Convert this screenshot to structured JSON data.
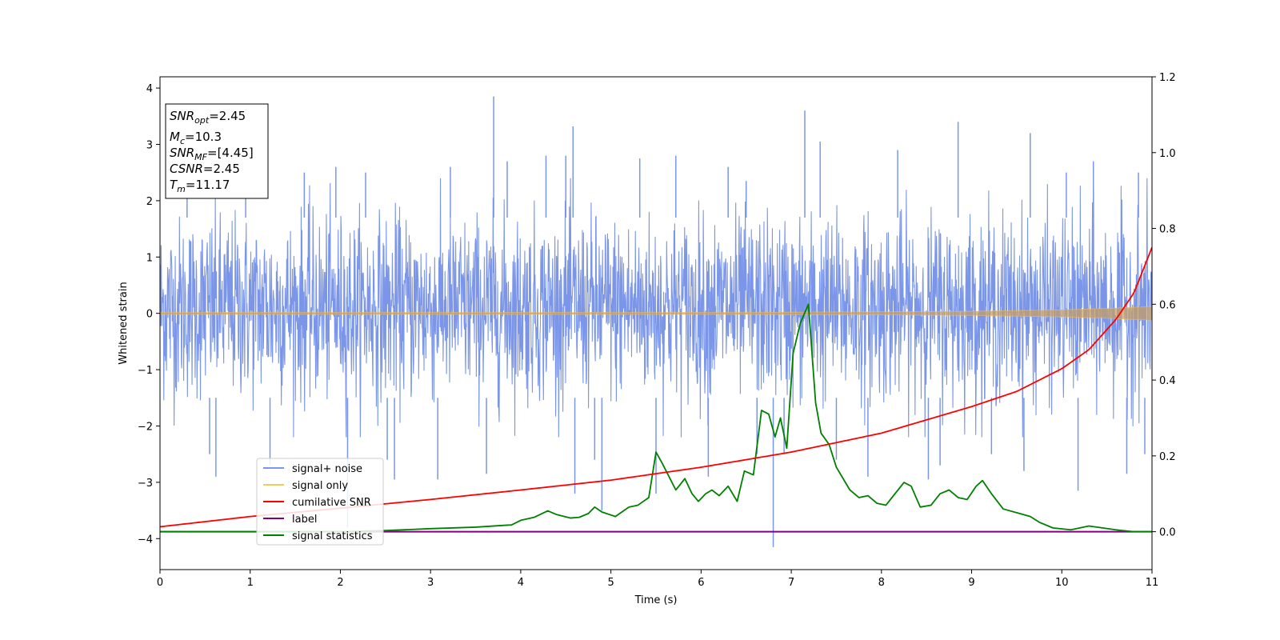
{
  "chart_data": {
    "type": "line",
    "xlabel": "Time (s)",
    "ylabel": "Whitened strain",
    "xlim": [
      0,
      11
    ],
    "ylim": [
      -4.55,
      4.2
    ],
    "y2lim": [
      -0.1,
      1.2
    ],
    "x_ticks": [
      0,
      1,
      2,
      3,
      4,
      5,
      6,
      7,
      8,
      9,
      10,
      11
    ],
    "y_ticks": [
      -4,
      -3,
      -2,
      -1,
      0,
      1,
      2,
      3,
      4
    ],
    "y2_ticks": [
      0.0,
      0.2,
      0.4,
      0.6,
      0.8,
      1.0,
      1.2
    ],
    "y_tick_labels": [
      "−4",
      "−3",
      "−2",
      "−1",
      "0",
      "1",
      "2",
      "3",
      "4"
    ],
    "y2_tick_labels": [
      "0.0",
      "0.2",
      "0.4",
      "0.6",
      "0.8",
      "1.0",
      "1.2"
    ],
    "grid": false,
    "legend_position": "lower-left",
    "annotation": {
      "lines": [
        {
          "sym": "SNR",
          "sub": "opt",
          "val": "=2.45"
        },
        {
          "sym": "M",
          "sub": "c",
          "val": "=10.3"
        },
        {
          "sym": "SNR",
          "sub": "MF",
          "val": "=[4.45]"
        },
        {
          "sym": "CSNR",
          "sub": "",
          "val": "=2.45"
        },
        {
          "sym": "T",
          "sub": "m",
          "val": "=11.17"
        }
      ]
    },
    "series": [
      {
        "name": "signal+ noise",
        "axis": "left",
        "color": "#7b96e8",
        "noise_band": {
          "typical_low": -1.8,
          "typical_high": 2.0
        },
        "spikes": [
          [
            0.3,
            2.5
          ],
          [
            0.55,
            -2.5
          ],
          [
            0.62,
            -2.9
          ],
          [
            0.95,
            2.6
          ],
          [
            1.22,
            -2.7
          ],
          [
            1.6,
            2.5
          ],
          [
            1.95,
            2.6
          ],
          [
            2.08,
            -3.8
          ],
          [
            2.28,
            2.5
          ],
          [
            2.52,
            -2.6
          ],
          [
            2.6,
            -2.95
          ],
          [
            3.08,
            -2.95
          ],
          [
            3.22,
            2.6
          ],
          [
            3.62,
            -2.85
          ],
          [
            3.7,
            3.85
          ],
          [
            3.85,
            2.7
          ],
          [
            4.28,
            2.8
          ],
          [
            4.5,
            2.8
          ],
          [
            4.58,
            3.32
          ],
          [
            4.6,
            -3.2
          ],
          [
            4.82,
            -2.6
          ],
          [
            4.9,
            -3.5
          ],
          [
            5.32,
            2.75
          ],
          [
            5.5,
            -3.2
          ],
          [
            5.72,
            2.8
          ],
          [
            6.08,
            -2.9
          ],
          [
            6.3,
            2.6
          ],
          [
            6.5,
            2.35
          ],
          [
            6.62,
            -2.5
          ],
          [
            6.8,
            -4.15
          ],
          [
            6.92,
            -2.5
          ],
          [
            7.15,
            3.6
          ],
          [
            7.32,
            3.05
          ],
          [
            7.5,
            -2.6
          ],
          [
            7.85,
            -2.9
          ],
          [
            8.18,
            2.9
          ],
          [
            8.52,
            -2.95
          ],
          [
            8.65,
            -2.7
          ],
          [
            8.85,
            3.4
          ],
          [
            9.22,
            -2.5
          ],
          [
            9.58,
            -2.8
          ],
          [
            9.65,
            3.2
          ],
          [
            10.05,
            2.5
          ],
          [
            10.18,
            -3.15
          ],
          [
            10.35,
            2.7
          ],
          [
            10.72,
            -2.85
          ],
          [
            10.85,
            2.5
          ],
          [
            10.92,
            -2.5
          ]
        ]
      },
      {
        "name": "signal only",
        "axis": "left",
        "color": "#f5c862",
        "envelope": {
          "x": [
            0,
            6.5,
            8.0,
            9.0,
            10.0,
            10.5,
            11.0
          ],
          "amp": [
            0.015,
            0.015,
            0.025,
            0.035,
            0.06,
            0.085,
            0.12
          ]
        }
      },
      {
        "name": "cumilative SNR",
        "axis": "right",
        "color": "#ff0000",
        "x": [
          0,
          1,
          2,
          3,
          4,
          5,
          6,
          7,
          8,
          9,
          9.5,
          10,
          10.3,
          10.6,
          10.8,
          11
        ],
        "values": [
          0.013,
          0.04,
          0.062,
          0.085,
          0.11,
          0.136,
          0.17,
          0.21,
          0.26,
          0.33,
          0.37,
          0.43,
          0.48,
          0.56,
          0.63,
          0.75
        ]
      },
      {
        "name": "label",
        "axis": "right",
        "color": "#800080",
        "x": [
          0,
          11
        ],
        "values": [
          0.0,
          0.0
        ]
      },
      {
        "name": "signal statistics",
        "axis": "right",
        "color": "#008000",
        "x": [
          0,
          1,
          2,
          2.5,
          3,
          3.5,
          3.9,
          4.0,
          4.15,
          4.3,
          4.4,
          4.55,
          4.65,
          4.75,
          4.82,
          4.9,
          5.05,
          5.2,
          5.3,
          5.42,
          5.5,
          5.57,
          5.72,
          5.82,
          5.9,
          5.97,
          6.05,
          6.12,
          6.2,
          6.3,
          6.4,
          6.48,
          6.58,
          6.67,
          6.75,
          6.82,
          6.88,
          6.95,
          7.02,
          7.1,
          7.19,
          7.27,
          7.33,
          7.42,
          7.5,
          7.65,
          7.75,
          7.85,
          7.95,
          8.05,
          8.15,
          8.25,
          8.33,
          8.43,
          8.55,
          8.65,
          8.75,
          8.85,
          8.95,
          9.05,
          9.12,
          9.22,
          9.35,
          9.5,
          9.65,
          9.75,
          9.9,
          10.1,
          10.3,
          10.6,
          10.8,
          11
        ],
        "values": [
          0.0,
          0.0,
          0.0,
          0.003,
          0.008,
          0.012,
          0.018,
          0.03,
          0.038,
          0.055,
          0.045,
          0.036,
          0.038,
          0.048,
          0.065,
          0.052,
          0.04,
          0.065,
          0.07,
          0.09,
          0.21,
          0.18,
          0.11,
          0.14,
          0.1,
          0.08,
          0.1,
          0.11,
          0.095,
          0.12,
          0.08,
          0.16,
          0.15,
          0.32,
          0.31,
          0.25,
          0.3,
          0.22,
          0.47,
          0.55,
          0.6,
          0.34,
          0.26,
          0.23,
          0.17,
          0.11,
          0.09,
          0.095,
          0.075,
          0.07,
          0.1,
          0.13,
          0.12,
          0.065,
          0.07,
          0.1,
          0.11,
          0.09,
          0.085,
          0.12,
          0.135,
          0.1,
          0.06,
          0.05,
          0.04,
          0.025,
          0.01,
          0.005,
          0.015,
          0.005,
          0.0,
          0.0
        ]
      }
    ]
  }
}
